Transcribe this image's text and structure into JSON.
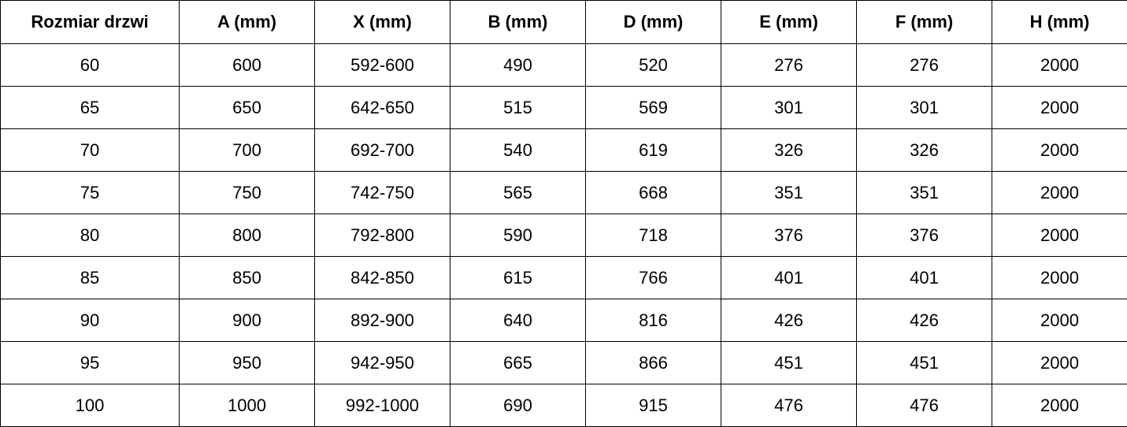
{
  "table": {
    "headers": [
      "Rozmiar drzwi",
      "A (mm)",
      "X (mm)",
      "B (mm)",
      "D (mm)",
      "E (mm)",
      "F (mm)",
      "H (mm)"
    ],
    "rows": [
      [
        "60",
        "600",
        "592-600",
        "490",
        "520",
        "276",
        "276",
        "2000"
      ],
      [
        "65",
        "650",
        "642-650",
        "515",
        "569",
        "301",
        "301",
        "2000"
      ],
      [
        "70",
        "700",
        "692-700",
        "540",
        "619",
        "326",
        "326",
        "2000"
      ],
      [
        "75",
        "750",
        "742-750",
        "565",
        "668",
        "351",
        "351",
        "2000"
      ],
      [
        "80",
        "800",
        "792-800",
        "590",
        "718",
        "376",
        "376",
        "2000"
      ],
      [
        "85",
        "850",
        "842-850",
        "615",
        "766",
        "401",
        "401",
        "2000"
      ],
      [
        "90",
        "900",
        "892-900",
        "640",
        "816",
        "426",
        "426",
        "2000"
      ],
      [
        "95",
        "950",
        "942-950",
        "665",
        "866",
        "451",
        "451",
        "2000"
      ],
      [
        "100",
        "1000",
        "992-1000",
        "690",
        "915",
        "476",
        "476",
        "2000"
      ]
    ]
  }
}
